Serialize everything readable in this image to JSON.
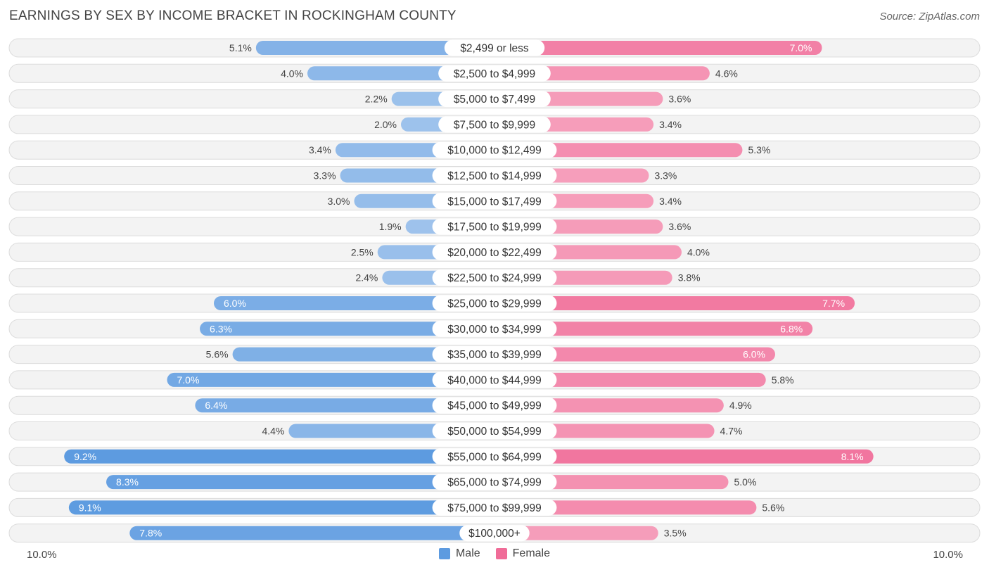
{
  "title": "EARNINGS BY SEX BY INCOME BRACKET IN ROCKINGHAM COUNTY",
  "source": "Source: ZipAtlas.com",
  "colors": {
    "male_dark": "#5d9be0",
    "male_light": "#a9c9ee",
    "female_dark": "#f06c98",
    "female_light": "#f8b3c9",
    "row_bg": "#f3f3f3",
    "row_border": "#dcdcdc"
  },
  "axis": {
    "left_label": "10.0%",
    "right_label": "10.0%"
  },
  "legend": {
    "male": "Male",
    "female": "Female"
  },
  "chart_data": {
    "type": "bar",
    "orientation": "horizontal-diverging",
    "title": "EARNINGS BY SEX BY INCOME BRACKET IN ROCKINGHAM COUNTY",
    "xlim": [
      -10,
      10
    ],
    "categories": [
      "$2,499 or less",
      "$2,500 to $4,999",
      "$5,000 to $7,499",
      "$7,500 to $9,999",
      "$10,000 to $12,499",
      "$12,500 to $14,999",
      "$15,000 to $17,499",
      "$17,500 to $19,999",
      "$20,000 to $22,499",
      "$22,500 to $24,999",
      "$25,000 to $29,999",
      "$30,000 to $34,999",
      "$35,000 to $39,999",
      "$40,000 to $44,999",
      "$45,000 to $49,999",
      "$50,000 to $54,999",
      "$55,000 to $64,999",
      "$65,000 to $74,999",
      "$75,000 to $99,999",
      "$100,000+"
    ],
    "series": [
      {
        "name": "Male",
        "values": [
          5.1,
          4.0,
          2.2,
          2.0,
          3.4,
          3.3,
          3.0,
          1.9,
          2.5,
          2.4,
          6.0,
          6.3,
          5.6,
          7.0,
          6.4,
          4.4,
          9.2,
          8.3,
          9.1,
          7.8
        ],
        "labels": [
          "5.1%",
          "4.0%",
          "2.2%",
          "2.0%",
          "3.4%",
          "3.3%",
          "3.0%",
          "1.9%",
          "2.5%",
          "2.4%",
          "6.0%",
          "6.3%",
          "5.6%",
          "7.0%",
          "6.4%",
          "4.4%",
          "9.2%",
          "8.3%",
          "9.1%",
          "7.8%"
        ]
      },
      {
        "name": "Female",
        "values": [
          7.0,
          4.6,
          3.6,
          3.4,
          5.3,
          3.3,
          3.4,
          3.6,
          4.0,
          3.8,
          7.7,
          6.8,
          6.0,
          5.8,
          4.9,
          4.7,
          8.1,
          5.0,
          5.6,
          3.5
        ],
        "labels": [
          "7.0%",
          "4.6%",
          "3.6%",
          "3.4%",
          "5.3%",
          "3.3%",
          "3.4%",
          "3.6%",
          "4.0%",
          "3.8%",
          "7.7%",
          "6.8%",
          "6.0%",
          "5.8%",
          "4.9%",
          "4.7%",
          "8.1%",
          "5.0%",
          "5.6%",
          "3.5%"
        ]
      }
    ]
  }
}
